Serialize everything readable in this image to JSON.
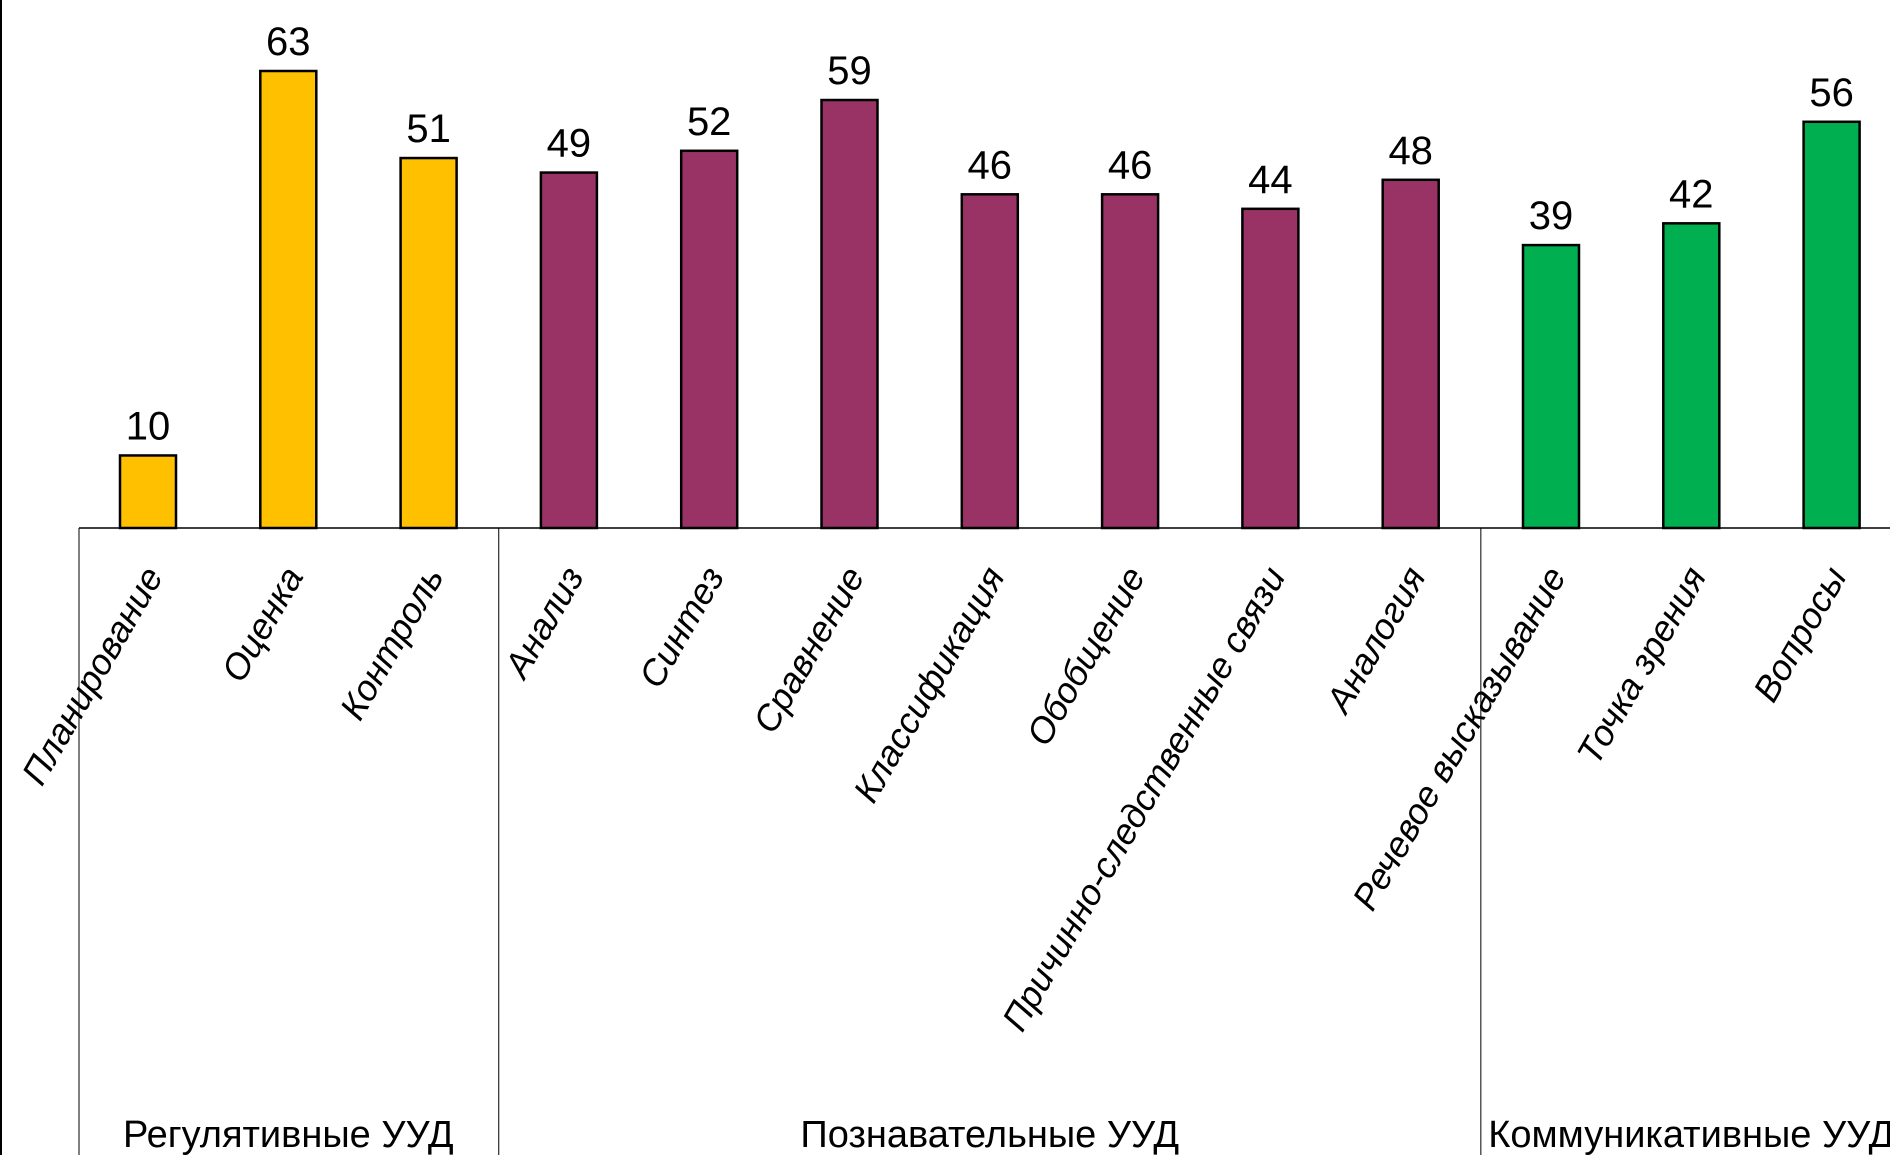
{
  "chart_data": {
    "type": "bar",
    "title": "",
    "xlabel": "",
    "ylabel": "",
    "ylim": [
      0,
      63
    ],
    "grid": false,
    "legend": "none",
    "categories": [
      "Планирование",
      "Оценка",
      "Контроль",
      "Анализ",
      "Синтез",
      "Сравнение",
      "Классификация",
      "Обобщение",
      "Причинно-следственные связи",
      "Аналогия",
      "Речевое высказывание",
      "Точка зрения",
      "Вопросы"
    ],
    "values": [
      10,
      63,
      51,
      49,
      52,
      59,
      46,
      46,
      44,
      48,
      39,
      42,
      56
    ],
    "groups": [
      {
        "name": "Регулятивные УУД",
        "start": 0,
        "count": 3,
        "color": "#FFC000"
      },
      {
        "name": "Познавательные УУД",
        "start": 3,
        "count": 7,
        "color": "#993366"
      },
      {
        "name": "Коммуникативные УУД",
        "start": 10,
        "count": 3,
        "color": "#00B050"
      }
    ]
  }
}
